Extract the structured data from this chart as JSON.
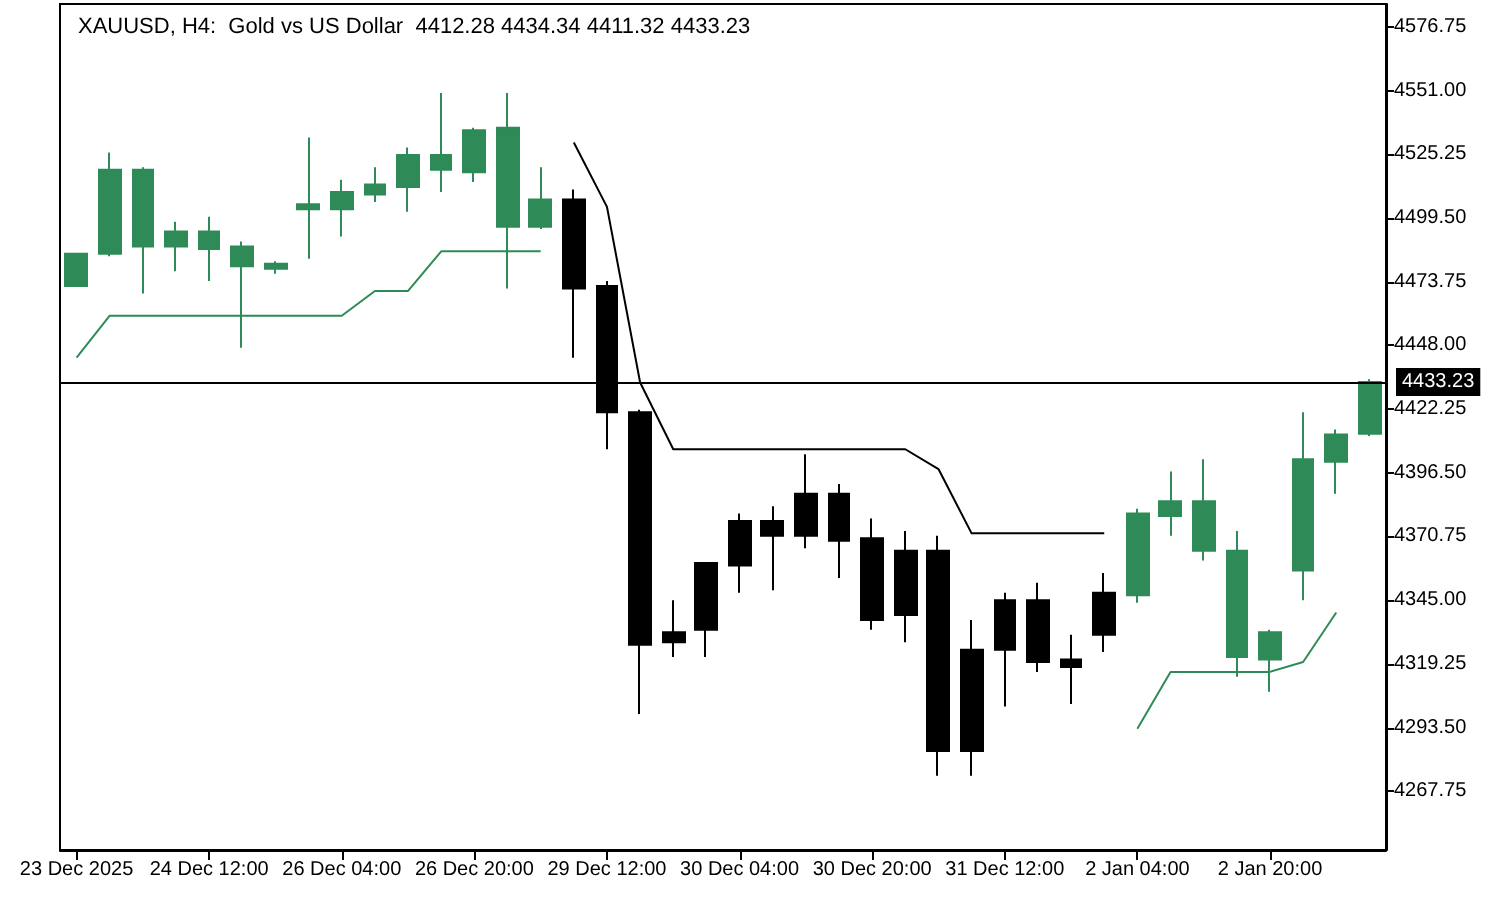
{
  "chart_data": {
    "type": "candlestick",
    "title": "XAUUSD, H4:  Gold vs US Dollar  4412.28 4434.34 4411.32 4433.23",
    "categories": [
      "23 Dec 2025",
      null,
      null,
      null,
      "24 Dec 12:00",
      null,
      null,
      null,
      "26 Dec 04:00",
      null,
      null,
      null,
      "26 Dec 20:00",
      null,
      null,
      null,
      "29 Dec 12:00",
      null,
      null,
      null,
      "30 Dec 04:00",
      null,
      null,
      null,
      "30 Dec 20:00",
      null,
      null,
      null,
      "31 Dec 12:00",
      null,
      null,
      null,
      "2 Jan 04:00",
      null,
      null,
      null,
      "2 Jan 20:00",
      null,
      null,
      null
    ],
    "ohlc": [
      [
        4472,
        4485,
        4472,
        4485
      ],
      [
        4485,
        4526,
        4484,
        4519
      ],
      [
        4488,
        4520,
        4469,
        4519
      ],
      [
        4488,
        4498,
        4478,
        4494
      ],
      [
        4487,
        4500,
        4474,
        4494
      ],
      [
        4480,
        4490,
        4447,
        4488
      ],
      [
        4479,
        4482,
        4477,
        4481
      ],
      [
        4503,
        4532,
        4483,
        4505
      ],
      [
        4503,
        4515,
        4492,
        4510
      ],
      [
        4509,
        4520,
        4506,
        4513
      ],
      [
        4512,
        4528,
        4502,
        4525
      ],
      [
        4519,
        4550,
        4510,
        4525
      ],
      [
        4518,
        4536,
        4514,
        4535
      ],
      [
        4496,
        4550,
        4471,
        4536
      ],
      [
        4496,
        4520,
        4495,
        4507
      ],
      [
        4507,
        4511,
        4443,
        4471
      ],
      [
        4472,
        4474,
        4406,
        4421
      ],
      [
        4421,
        4422,
        4299,
        4327
      ],
      [
        4332,
        4345,
        4322,
        4328
      ],
      [
        4360,
        4360,
        4322,
        4333
      ],
      [
        4377,
        4380,
        4348,
        4359
      ],
      [
        4377,
        4383,
        4349,
        4371
      ],
      [
        4388,
        4404,
        4366,
        4371
      ],
      [
        4388,
        4392,
        4354,
        4369
      ],
      [
        4370,
        4378,
        4333,
        4337
      ],
      [
        4365,
        4373,
        4328,
        4339
      ],
      [
        4365,
        4371,
        4274,
        4284
      ],
      [
        4325,
        4337,
        4274,
        4284
      ],
      [
        4345,
        4348,
        4302,
        4325
      ],
      [
        4345,
        4352,
        4316,
        4320
      ],
      [
        4321,
        4331,
        4303,
        4318
      ],
      [
        4348,
        4356,
        4324,
        4331
      ],
      [
        4347,
        4382,
        4344,
        4380
      ],
      [
        4379,
        4397,
        4371,
        4385
      ],
      [
        4365,
        4402,
        4361,
        4385
      ],
      [
        4322,
        4373,
        4314,
        4365
      ],
      [
        4321,
        4333,
        4308,
        4332
      ],
      [
        4357,
        4421,
        4345,
        4402
      ],
      [
        4401,
        4414,
        4388,
        4412
      ],
      [
        4412.28,
        4434.34,
        4411.32,
        4433.23
      ]
    ],
    "colors": [
      "#2e8b57",
      "#2e8b57",
      "#2e8b57",
      "#2e8b57",
      "#2e8b57",
      "#2e8b57",
      "#2e8b57",
      "#2e8b57",
      "#2e8b57",
      "#2e8b57",
      "#2e8b57",
      "#2e8b57",
      "#2e8b57",
      "#2e8b57",
      "#2e8b57",
      "#000000",
      "#000000",
      "#000000",
      "#000000",
      "#000000",
      "#000000",
      "#000000",
      "#000000",
      "#000000",
      "#000000",
      "#000000",
      "#000000",
      "#000000",
      "#000000",
      "#000000",
      "#000000",
      "#000000",
      "#2e8b57",
      "#2e8b57",
      "#2e8b57",
      "#2e8b57",
      "#2e8b57",
      "#2e8b57",
      "#2e8b57",
      "#2e8b57"
    ],
    "series": [
      {
        "type": "line",
        "color": "#2e8b57",
        "values": [
          4443,
          4460,
          4460,
          4460,
          4460,
          4460,
          4460,
          4460,
          4460,
          4470,
          4470,
          4486,
          4486,
          4486,
          4486,
          null,
          null,
          null,
          null,
          null,
          null,
          null,
          null,
          null,
          null,
          null,
          null,
          null,
          null,
          null,
          null,
          null,
          4293,
          4316,
          4316,
          4316,
          4316,
          4320,
          4340,
          null
        ]
      },
      {
        "type": "line",
        "color": "#000000",
        "values": [
          null,
          null,
          null,
          null,
          null,
          null,
          null,
          null,
          null,
          null,
          null,
          null,
          null,
          null,
          null,
          4530,
          4504,
          4433,
          4406,
          4406,
          4406,
          4406,
          4406,
          4406,
          4406,
          4406,
          4398,
          4372,
          4372,
          4372,
          4372,
          4372,
          null,
          null,
          null,
          null,
          null,
          null,
          null,
          null
        ]
      }
    ],
    "ylim": [
      4244,
      4586
    ],
    "yticks": [
      {
        "value": 4267.75,
        "label": "4267.75"
      },
      {
        "value": 4293.5,
        "label": "4293.50"
      },
      {
        "value": 4319.25,
        "label": "4319.25"
      },
      {
        "value": 4345,
        "label": "4345.00"
      },
      {
        "value": 4370.75,
        "label": "4370.75"
      },
      {
        "value": 4396.5,
        "label": "4396.50"
      },
      {
        "value": 4422.25,
        "label": "4422.25"
      },
      {
        "value": 4448,
        "label": "4448.00"
      },
      {
        "value": 4473.75,
        "label": "4473.75"
      },
      {
        "value": 4499.5,
        "label": "4499.50"
      },
      {
        "value": 4525.25,
        "label": "4525.25"
      },
      {
        "value": 4551,
        "label": "4551.00"
      },
      {
        "value": 4576.75,
        "label": "4576.75"
      }
    ],
    "ref_lines": [
      {
        "axis": "y",
        "value": 4433.23,
        "label": "4433.23",
        "color": "#000000"
      }
    ],
    "grid": false,
    "marker": "none",
    "line_style": "solid"
  }
}
